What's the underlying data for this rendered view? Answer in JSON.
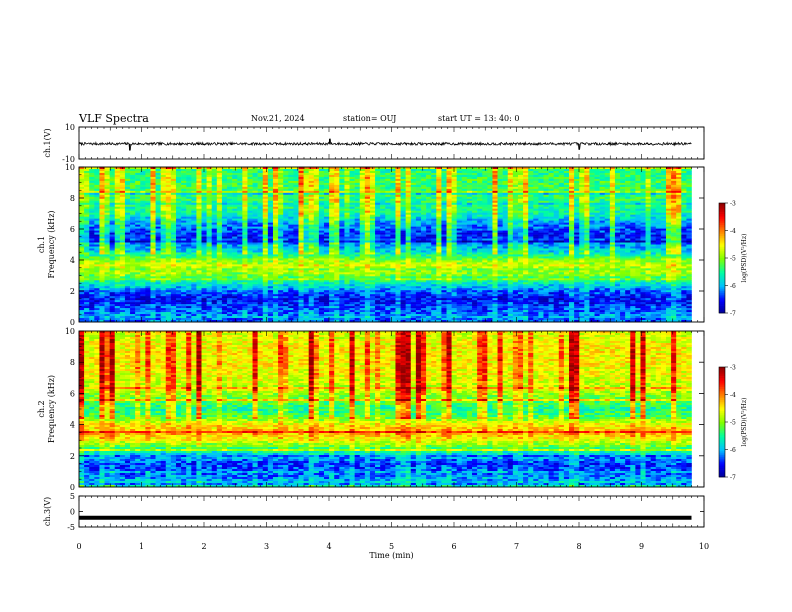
{
  "header": {
    "title": "VLF Spectra",
    "date": "Nov.21, 2024",
    "station": "station= OUJ",
    "start": "start UT = 13: 40: 0"
  },
  "colors": {
    "colormap": [
      "#00008f",
      "#0000ff",
      "#00bfff",
      "#00ffa0",
      "#80ff00",
      "#ffff00",
      "#ff8000",
      "#ff0000",
      "#8f0000"
    ],
    "trace": "#000000"
  },
  "chart_data": [
    {
      "type": "line",
      "name": "ch1-waveform",
      "ylabel": "ch.1(V)",
      "ylim": [
        -10,
        10
      ],
      "yticks": [
        10,
        -10
      ],
      "x": [
        0,
        0.8,
        0.81,
        2,
        4,
        4.01,
        5,
        7.99,
        8,
        9.1,
        9.8
      ],
      "y": [
        -0.5,
        -0.5,
        -4.5,
        -0.6,
        -0.5,
        2.5,
        -0.4,
        -0.5,
        -4,
        -0.4,
        -0.5
      ],
      "xlim": [
        0,
        10
      ]
    },
    {
      "type": "heatmap",
      "name": "ch1-spectrogram",
      "ylabel": "ch.1\nFrequency (kHz)",
      "ylim": [
        0,
        10
      ],
      "yticks": [
        "0",
        "2",
        "4",
        "6",
        "8",
        "10"
      ],
      "xlim": [
        0,
        9.8
      ],
      "zlabel": "log(PSD)(V²/Hz)",
      "zlim": [
        -7,
        -3
      ],
      "zticks": [
        "-3",
        "-4",
        "-5",
        "-6",
        "-7"
      ],
      "band_profile": [
        {
          "f": 0.0,
          "z": -6.3
        },
        {
          "f": 0.5,
          "z": -6.2
        },
        {
          "f": 1.0,
          "z": -6.4
        },
        {
          "f": 1.5,
          "z": -6.6
        },
        {
          "f": 2.0,
          "z": -6.3
        },
        {
          "f": 2.3,
          "z": -5.9
        },
        {
          "f": 2.7,
          "z": -5.5
        },
        {
          "f": 3.0,
          "z": -5.1
        },
        {
          "f": 3.3,
          "z": -4.9
        },
        {
          "f": 3.6,
          "z": -4.8
        },
        {
          "f": 4.0,
          "z": -5.0
        },
        {
          "f": 4.5,
          "z": -5.8
        },
        {
          "f": 5.0,
          "z": -6.1
        },
        {
          "f": 5.5,
          "z": -6.5
        },
        {
          "f": 6.0,
          "z": -6.3
        },
        {
          "f": 6.5,
          "z": -6.0
        },
        {
          "f": 7.0,
          "z": -5.6
        },
        {
          "f": 8.0,
          "z": -5.4
        },
        {
          "f": 9.0,
          "z": -5.3
        },
        {
          "f": 10.0,
          "z": -5.5
        }
      ]
    },
    {
      "type": "heatmap",
      "name": "ch2-spectrogram",
      "ylabel": "ch.2\nFrequency (kHz)",
      "ylim": [
        0,
        10
      ],
      "yticks": [
        "0",
        "2",
        "4",
        "6",
        "8",
        "10"
      ],
      "xlim": [
        0,
        9.8
      ],
      "zlabel": "log(PSD)(V²/Hz)",
      "zlim": [
        -7,
        -3
      ],
      "zticks": [
        "-3",
        "-4",
        "-5",
        "-6",
        "-7"
      ],
      "band_profile": [
        {
          "f": 0.0,
          "z": -5.6
        },
        {
          "f": 0.5,
          "z": -6.1
        },
        {
          "f": 1.0,
          "z": -6.3
        },
        {
          "f": 1.5,
          "z": -6.4
        },
        {
          "f": 2.0,
          "z": -6.0
        },
        {
          "f": 2.5,
          "z": -5.3
        },
        {
          "f": 3.0,
          "z": -4.6
        },
        {
          "f": 3.5,
          "z": -4.2
        },
        {
          "f": 4.0,
          "z": -4.5
        },
        {
          "f": 4.5,
          "z": -5.2
        },
        {
          "f": 5.0,
          "z": -5.5
        },
        {
          "f": 5.5,
          "z": -5.2
        },
        {
          "f": 6.0,
          "z": -4.9
        },
        {
          "f": 7.0,
          "z": -4.6
        },
        {
          "f": 8.0,
          "z": -4.5
        },
        {
          "f": 9.0,
          "z": -4.5
        },
        {
          "f": 10.0,
          "z": -4.7
        }
      ]
    },
    {
      "type": "line",
      "name": "ch3-waveform",
      "ylabel": "ch.3(V)",
      "ylim": [
        -5,
        5
      ],
      "yticks": [
        5,
        0,
        -5
      ],
      "x": [
        0,
        9.8
      ],
      "y": [
        -2,
        -2
      ],
      "xlim": [
        0,
        10
      ]
    }
  ],
  "xaxis": {
    "label": "Time (min)",
    "xlim": [
      0,
      10
    ],
    "ticks": [
      "0",
      "1",
      "2",
      "3",
      "4",
      "5",
      "6",
      "7",
      "8",
      "9",
      "10"
    ]
  }
}
